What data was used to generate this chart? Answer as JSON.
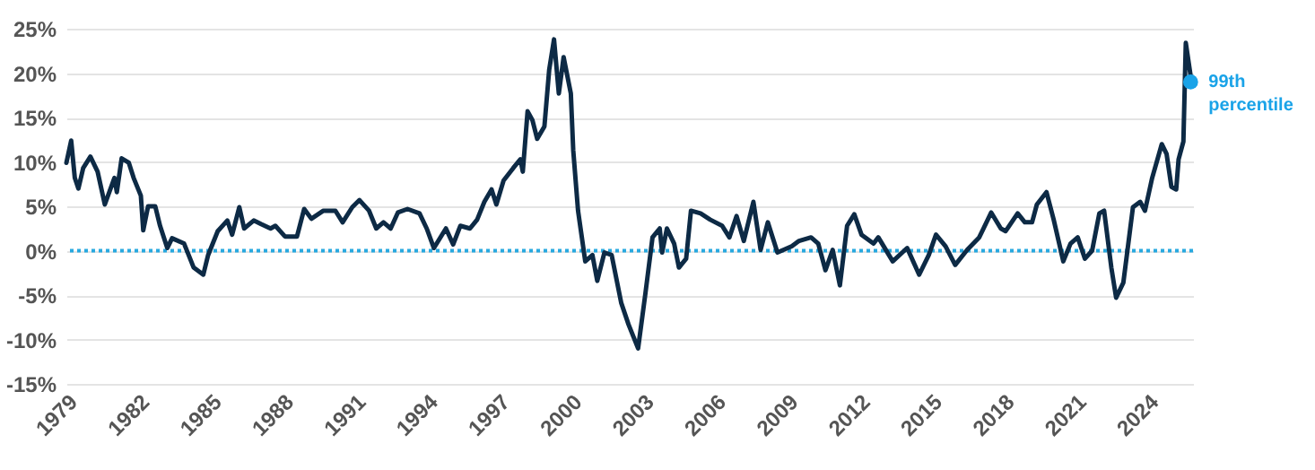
{
  "chart_data": {
    "type": "line",
    "xlim": [
      1979,
      2025.9
    ],
    "xticks": [
      1979,
      1982,
      1985,
      1988,
      1991,
      1994,
      1997,
      2000,
      2003,
      2006,
      2009,
      2012,
      2015,
      2018,
      2021,
      2024
    ],
    "ylim": [
      -15,
      25
    ],
    "yticks": [
      {
        "value": -15,
        "label": "-15%"
      },
      {
        "value": -10,
        "label": "-10%"
      },
      {
        "value": -5,
        "label": "-5%"
      },
      {
        "value": 0,
        "label": "0%"
      },
      {
        "value": 5,
        "label": "5%"
      },
      {
        "value": 10,
        "label": "10%"
      },
      {
        "value": 15,
        "label": "15%"
      },
      {
        "value": 20,
        "label": "20%"
      },
      {
        "value": 25,
        "label": "25%"
      }
    ],
    "grid": "y",
    "line_style": "solid",
    "ref_lines": [
      {
        "axis": "y",
        "value": 0,
        "color": "#29a9e0",
        "line_style": "dotted"
      }
    ],
    "annotations": [
      {
        "text": "99th percentile",
        "x": 2025.8,
        "y": 19
      }
    ],
    "series": [
      {
        "type": "line",
        "color": "#0d2a45",
        "x": [
          1979.0,
          1979.2,
          1979.35,
          1979.5,
          1979.7,
          1980.0,
          1980.3,
          1980.6,
          1981.0,
          1981.1,
          1981.3,
          1981.6,
          1981.8,
          1982.1,
          1982.2,
          1982.4,
          1982.7,
          1982.9,
          1983.2,
          1983.4,
          1983.9,
          1984.3,
          1984.7,
          1984.9,
          1985.3,
          1985.7,
          1985.9,
          1986.2,
          1986.4,
          1986.8,
          1987.1,
          1987.5,
          1987.7,
          1988.1,
          1988.6,
          1988.9,
          1989.2,
          1989.7,
          1990.2,
          1990.5,
          1990.9,
          1991.2,
          1991.6,
          1991.9,
          1992.2,
          1992.5,
          1992.8,
          1993.2,
          1993.7,
          1994.0,
          1994.3,
          1994.8,
          1995.1,
          1995.4,
          1995.8,
          1996.1,
          1996.4,
          1996.7,
          1996.9,
          1997.2,
          1997.6,
          1997.9,
          1998.0,
          1998.2,
          1998.4,
          1998.6,
          1998.9,
          1999.1,
          1999.3,
          1999.5,
          1999.7,
          2000.0,
          2000.1,
          2000.3,
          2000.6,
          2000.9,
          2001.1,
          2001.4,
          2001.7,
          2002.1,
          2002.4,
          2002.8,
          2003.1,
          2003.4,
          2003.7,
          2003.8,
          2004.0,
          2004.3,
          2004.5,
          2004.8,
          2005.0,
          2005.4,
          2005.8,
          2006.3,
          2006.6,
          2006.9,
          2007.2,
          2007.6,
          2007.9,
          2008.2,
          2008.6,
          2009.2,
          2009.5,
          2010.0,
          2010.3,
          2010.6,
          2010.9,
          2011.2,
          2011.5,
          2011.8,
          2012.1,
          2012.6,
          2012.8,
          2013.4,
          2014.0,
          2014.5,
          2014.9,
          2015.2,
          2015.6,
          2016.0,
          2016.5,
          2017.0,
          2017.5,
          2017.9,
          2018.1,
          2018.6,
          2018.9,
          2019.2,
          2019.4,
          2019.8,
          2020.1,
          2020.5,
          2020.8,
          2021.1,
          2021.4,
          2021.7,
          2022.0,
          2022.2,
          2022.5,
          2022.7,
          2023.0,
          2023.4,
          2023.7,
          2023.9,
          2024.2,
          2024.6,
          2024.8,
          2025.0,
          2025.2,
          2025.3,
          2025.5,
          2025.6,
          2025.8
        ],
        "values": [
          9.9,
          12.4,
          8.2,
          7.0,
          9.3,
          10.6,
          8.9,
          5.2,
          8.2,
          6.6,
          10.4,
          9.9,
          8.2,
          6.2,
          2.3,
          5.0,
          5.0,
          2.8,
          0.3,
          1.4,
          0.8,
          -1.9,
          -2.7,
          -0.5,
          2.2,
          3.4,
          1.8,
          4.9,
          2.5,
          3.4,
          3.0,
          2.5,
          2.8,
          1.6,
          1.6,
          4.7,
          3.6,
          4.5,
          4.5,
          3.2,
          4.9,
          5.7,
          4.5,
          2.5,
          3.2,
          2.5,
          4.3,
          4.7,
          4.2,
          2.5,
          0.3,
          2.5,
          0.7,
          2.8,
          2.5,
          3.5,
          5.5,
          6.9,
          5.2,
          7.9,
          9.3,
          10.3,
          8.9,
          15.7,
          14.7,
          12.6,
          14.0,
          20.4,
          23.8,
          17.7,
          21.8,
          17.7,
          11.3,
          4.5,
          -1.2,
          -0.5,
          -3.4,
          -0.2,
          -0.5,
          -5.9,
          -8.3,
          -11.0,
          -4.9,
          1.5,
          2.5,
          -0.2,
          2.5,
          0.8,
          -1.9,
          -0.9,
          4.5,
          4.2,
          3.5,
          2.8,
          1.5,
          3.9,
          1.1,
          5.5,
          0.1,
          3.2,
          -0.2,
          0.5,
          1.1,
          1.5,
          0.8,
          -2.2,
          0.1,
          -3.9,
          2.8,
          4.1,
          1.8,
          0.8,
          1.5,
          -1.2,
          0.3,
          -2.7,
          -0.5,
          1.8,
          0.5,
          -1.6,
          0.1,
          1.5,
          4.3,
          2.5,
          2.2,
          4.2,
          3.2,
          3.2,
          5.2,
          6.6,
          3.5,
          -1.2,
          0.8,
          1.5,
          -0.9,
          0.0,
          4.2,
          4.5,
          -1.9,
          -5.3,
          -3.6,
          4.9,
          5.5,
          4.5,
          8.2,
          12.0,
          10.9,
          7.2,
          6.9,
          10.3,
          12.3,
          23.4,
          19.7
        ]
      },
      {
        "type": "scatter",
        "color": "#1aa3e8",
        "marker": "circle",
        "x": [
          2025.8
        ],
        "values": [
          19
        ]
      }
    ]
  }
}
